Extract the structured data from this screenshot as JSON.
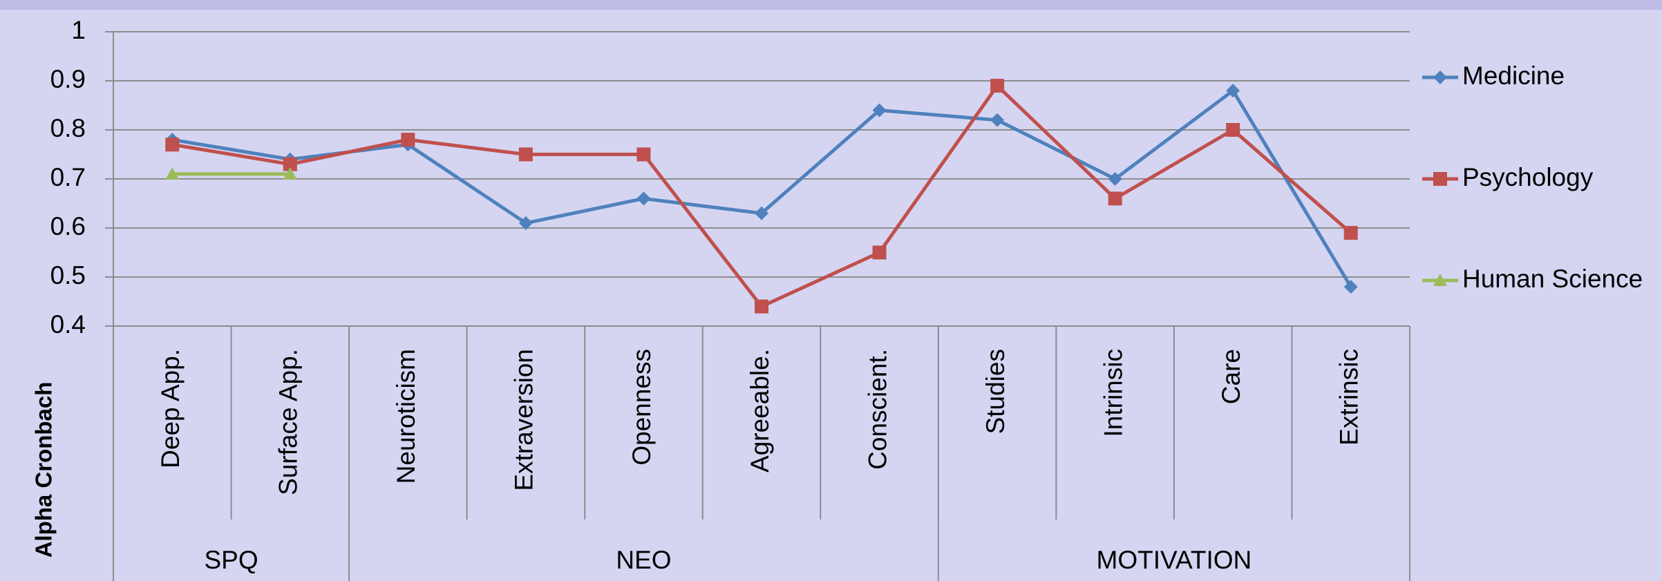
{
  "chart_data": {
    "type": "line",
    "y_label": "Alpha Cronbach",
    "categories": [
      "Deep App.",
      "Surface App.",
      "Neuroticism",
      "Extraversion",
      "Openness",
      "Agreeable.",
      "Conscient.",
      "Studies",
      "Intrinsic",
      "Care",
      "Extrinsic"
    ],
    "groups": [
      {
        "name": "SPQ",
        "count": 2
      },
      {
        "name": "NEO",
        "count": 5
      },
      {
        "name": "MOTIVATION",
        "count": 4
      }
    ],
    "series": [
      {
        "name": "Medicine",
        "color": "#4f81bd",
        "marker": "diamond",
        "values": [
          0.78,
          0.74,
          0.77,
          0.61,
          0.66,
          0.63,
          0.84,
          0.82,
          0.7,
          0.88,
          0.48
        ]
      },
      {
        "name": "Psychology",
        "color": "#c0504d",
        "marker": "square",
        "values": [
          0.77,
          0.73,
          0.78,
          0.75,
          0.75,
          0.44,
          0.55,
          0.89,
          0.66,
          0.8,
          0.59
        ]
      },
      {
        "name": "Human Science",
        "color": "#9bbb59",
        "marker": "triangle",
        "values": [
          0.71,
          0.71,
          null,
          null,
          null,
          null,
          null,
          null,
          null,
          null,
          null
        ]
      }
    ],
    "ylim": [
      0.4,
      1
    ],
    "yticks": [
      0.4,
      0.5,
      0.6,
      0.7,
      0.8,
      0.9,
      1
    ],
    "grid": true,
    "legend": "right"
  }
}
